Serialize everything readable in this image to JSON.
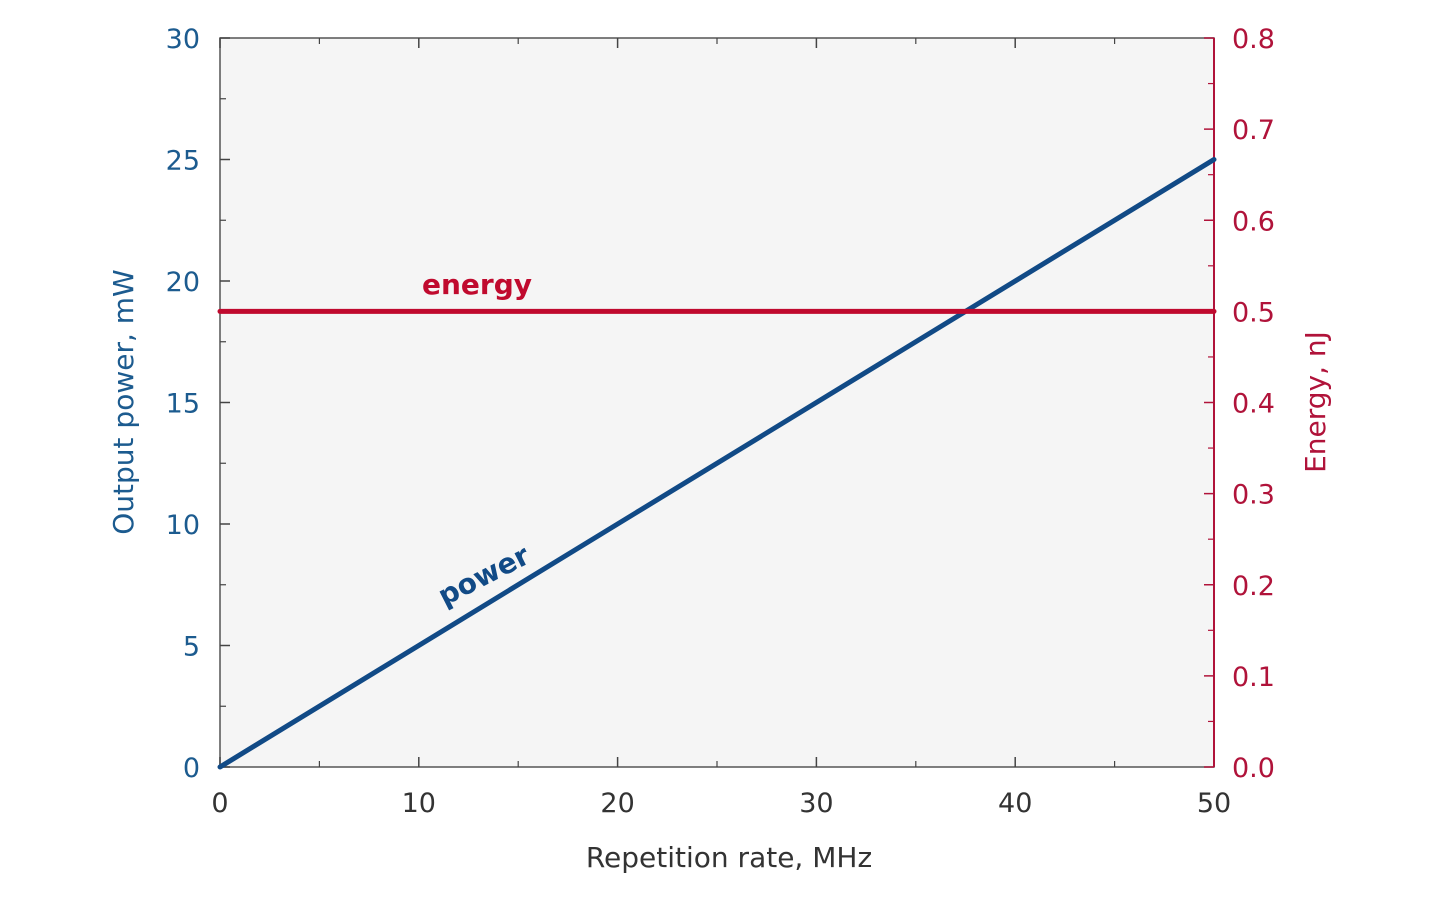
{
  "chart_data": {
    "type": "line",
    "title": "",
    "xlabel": "Repetition rate, MHz",
    "ylabel_left": "Output power, mW",
    "ylabel_right": "Energy, nJ",
    "xlim": [
      0,
      50
    ],
    "ylim_left": [
      0,
      30
    ],
    "ylim_right": [
      0.0,
      0.8
    ],
    "x_ticks": [
      "0",
      "10",
      "20",
      "30",
      "40",
      "50"
    ],
    "y_left_ticks": [
      "0",
      "5",
      "10",
      "15",
      "20",
      "25",
      "30"
    ],
    "y_right_ticks": [
      "0.0",
      "0.1",
      "0.2",
      "0.3",
      "0.4",
      "0.5",
      "0.6",
      "0.7",
      "0.8"
    ],
    "grid": false,
    "plot_background": "#f5f5f5",
    "series": [
      {
        "name": "power",
        "axis": "left",
        "color": "#114a86",
        "x": [
          0,
          50
        ],
        "y": [
          0,
          25
        ]
      },
      {
        "name": "energy",
        "axis": "right",
        "color": "#c00a2e",
        "x": [
          0,
          50
        ],
        "y": [
          0.5,
          0.5
        ]
      }
    ],
    "colors": {
      "left_axis": "#1c5b8f",
      "right_axis": "#b0133a",
      "x_axis": "#333333"
    }
  }
}
